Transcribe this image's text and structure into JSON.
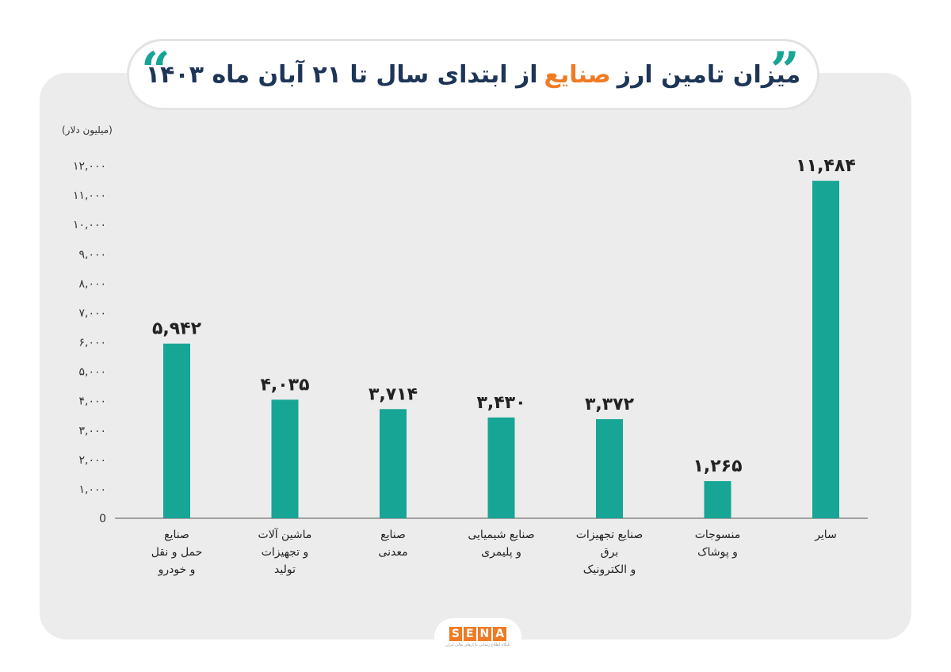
{
  "title": {
    "part_dark_1": "میزان تامین ارز",
    "part_orange": "صنایع",
    "part_dark_2": "از ابتدای سال تا ۲۱ آبان ماه ۱۴۰۳"
  },
  "logo": {
    "letters": [
      "S",
      "E",
      "N",
      "A"
    ],
    "subtitle": "پایگاه اطلاع رسانی بازارهای مالی ایران"
  },
  "colors": {
    "bar": "#17a596",
    "title_dark": "#1d3557",
    "title_accent": "#f07b24",
    "panel": "#ececec"
  },
  "chart_data": {
    "type": "bar",
    "ylabel": "(میلیون دلار)",
    "ylim": [
      0,
      12000
    ],
    "yticks": [
      0,
      1000,
      2000,
      3000,
      4000,
      5000,
      6000,
      7000,
      8000,
      9000,
      10000,
      11000,
      12000
    ],
    "ytick_labels": [
      "0",
      "۱,۰۰۰",
      "۲,۰۰۰",
      "۳,۰۰۰",
      "۴,۰۰۰",
      "۵,۰۰۰",
      "۶,۰۰۰",
      "۷,۰۰۰",
      "۸,۰۰۰",
      "۹,۰۰۰",
      "۱۰,۰۰۰",
      "۱۱,۰۰۰",
      "۱۲,۰۰۰"
    ],
    "categories": [
      "صنایع\nحمل و نقل\nو خودرو",
      "ماشین آلات\nو تجهیزات\nتولید",
      "صنایع\nمعدنی",
      "صنایع شیمیایی\nو پلیمری",
      "صنایع تجهیزات\nبرق\nو الکترونیک",
      "منسوجات\nو پوشاک",
      "سایر"
    ],
    "values": [
      5942,
      4035,
      3714,
      3430,
      3372,
      1265,
      11484
    ],
    "value_labels": [
      "۵,۹۴۲",
      "۴,۰۳۵",
      "۳,۷۱۴",
      "۳,۴۳۰",
      "۳,۳۷۲",
      "۱,۲۶۵",
      "۱۱,۴۸۴"
    ],
    "grid": false,
    "legend": "none"
  }
}
